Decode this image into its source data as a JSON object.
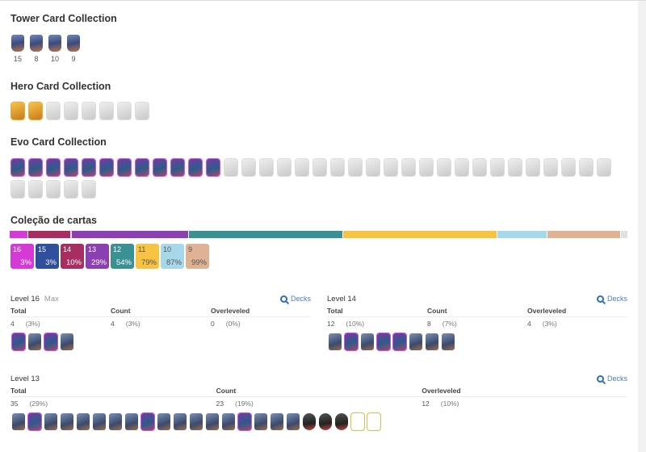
{
  "tower": {
    "title": "Tower Card Collection",
    "cards": [
      {
        "level": "15"
      },
      {
        "level": "8"
      },
      {
        "level": "10"
      },
      {
        "level": "9"
      }
    ]
  },
  "hero": {
    "title": "Hero Card Collection",
    "cards": [
      "hero",
      "hero",
      "locked",
      "locked",
      "locked",
      "locked",
      "locked",
      "locked"
    ]
  },
  "evo": {
    "title": "Evo Card Collection",
    "cards": [
      "evo",
      "evo",
      "evo",
      "evo",
      "evo",
      "evo",
      "evo",
      "evo",
      "evo",
      "evo",
      "evo",
      "evo",
      "locked",
      "locked",
      "locked",
      "locked",
      "locked",
      "locked",
      "locked",
      "locked",
      "locked",
      "locked",
      "locked",
      "locked",
      "locked",
      "locked",
      "locked",
      "locked",
      "locked",
      "locked",
      "locked",
      "locked",
      "locked",
      "locked",
      "locked",
      "locked",
      "locked",
      "locked",
      "locked"
    ]
  },
  "collection": {
    "title": "Coleção de cartas",
    "levels": [
      {
        "level": "16",
        "pct": "3%",
        "cum": 3,
        "color": "#d63ad6"
      },
      {
        "level": "15",
        "pct": "3%",
        "cum": 3,
        "color": "#2f4f9c"
      },
      {
        "level": "14",
        "pct": "10%",
        "cum": 10,
        "color": "#a82e62"
      },
      {
        "level": "13",
        "pct": "29%",
        "cum": 29,
        "color": "#8c3fb0"
      },
      {
        "level": "12",
        "pct": "54%",
        "cum": 54,
        "color": "#3a9194"
      },
      {
        "level": "11",
        "pct": "79%",
        "cum": 79,
        "color": "#f6c342"
      },
      {
        "level": "10",
        "pct": "87%",
        "cum": 87,
        "color": "#a6d8ea"
      },
      {
        "level": "9",
        "pct": "99%",
        "cum": 99,
        "color": "#deb292"
      }
    ]
  },
  "sections": [
    {
      "title": "Level 16",
      "sub": "Max",
      "decks": "Decks",
      "total": "4",
      "total_pct": "(3%)",
      "count": "4",
      "count_pct": "(3%)",
      "over": "0",
      "over_pct": "(0%)",
      "cards": [
        "evo",
        "owned",
        "evo",
        "owned"
      ]
    },
    {
      "title": "Level 14",
      "sub": "",
      "decks": "Decks",
      "total": "12",
      "total_pct": "(10%)",
      "count": "8",
      "count_pct": "(7%)",
      "over": "4",
      "over_pct": "(3%)",
      "cards": [
        "owned",
        "evo",
        "owned",
        "evo",
        "evo",
        "owned",
        "owned",
        "owned"
      ]
    },
    {
      "title": "Level 13",
      "sub": "",
      "decks": "Decks",
      "total": "35",
      "total_pct": "(29%)",
      "count": "23",
      "count_pct": "(19%)",
      "over": "12",
      "over_pct": "(10%)",
      "cards": [
        "owned",
        "evo",
        "owned",
        "owned",
        "owned",
        "owned",
        "owned",
        "owned",
        "evo",
        "owned",
        "owned",
        "owned",
        "owned",
        "owned",
        "evo",
        "owned",
        "owned",
        "owned",
        "champ",
        "champ",
        "champ",
        "gold",
        "gold"
      ]
    }
  ],
  "labels": {
    "total": "Total",
    "count": "Count",
    "over": "Overleveled"
  }
}
